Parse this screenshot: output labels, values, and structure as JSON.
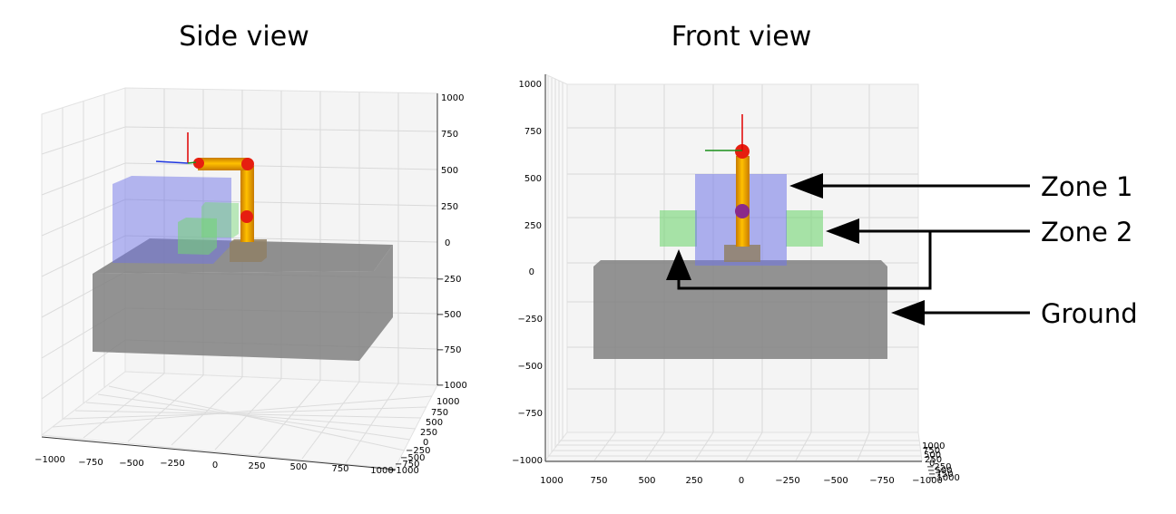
{
  "panels": {
    "side": {
      "title": "Side view",
      "z_ticks": [
        "1000",
        "750",
        "500",
        "250",
        "0",
        "−250",
        "−500",
        "−750",
        "−1000"
      ],
      "x_ticks": [
        "−1000",
        "−750",
        "−500",
        "−250",
        "0",
        "250",
        "500",
        "750",
        "1000"
      ],
      "y_ticks": [
        "1000",
        "750",
        "500",
        "250",
        "0",
        "−250",
        "−500",
        "−750",
        "−1000"
      ]
    },
    "front": {
      "title": "Front view",
      "z_ticks": [
        "1000",
        "750",
        "500",
        "250",
        "0",
        "−250",
        "−500",
        "−750",
        "−1000"
      ],
      "x_ticks": [
        "1000",
        "750",
        "500",
        "250",
        "0",
        "−250",
        "−500",
        "−750",
        "−1000"
      ],
      "depth_ticks": [
        "1000",
        "750",
        "500",
        "250",
        "0",
        "−250",
        "−500",
        "−750",
        "−1000"
      ]
    }
  },
  "callouts": {
    "zone1": "Zone 1",
    "zone2": "Zone 2",
    "ground": "Ground"
  },
  "colors": {
    "zone1": "#6f74e8",
    "zone2": "#72d672",
    "ground": "#7d7d7d",
    "robot_link": "#f5a623",
    "robot_joint": "#e61e10",
    "base": "#8f8066",
    "axis_x": "#e00000",
    "axis_y": "#1a8f1a",
    "axis_z": "#1e36e0"
  }
}
